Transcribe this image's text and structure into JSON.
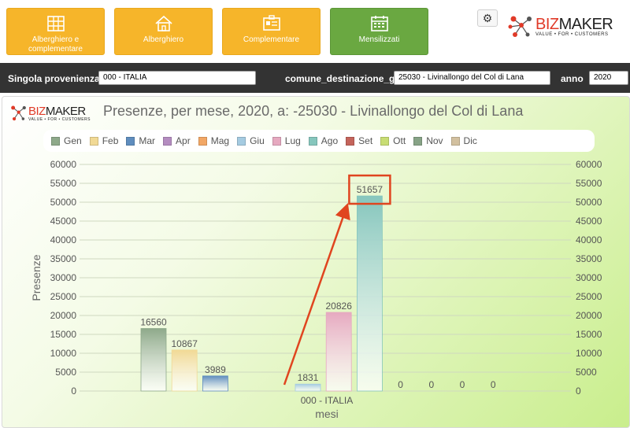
{
  "nav": {
    "buttons": [
      {
        "label": "Alberghiero e complementare",
        "icon": "building-icon",
        "style": "orange"
      },
      {
        "label": "Alberghiero",
        "icon": "house-icon",
        "style": "orange"
      },
      {
        "label": "Complementare",
        "icon": "id-card-icon",
        "style": "orange"
      },
      {
        "label": "Mensilizzati",
        "icon": "calendar-icon",
        "style": "green"
      }
    ]
  },
  "logo": {
    "word_a": "BIZ",
    "word_b": "MAKER",
    "tagline": "VALUE • FOR • CUSTOMERS"
  },
  "filters": {
    "provenienza_label": "Singola provenienza:",
    "provenienza_value": "000 - ITALIA",
    "comune_label": "comune_destinazione_g",
    "comune_value": "25030 - Livinallongo del Col di Lana",
    "anno_label": "anno",
    "anno_value": "2020"
  },
  "colors": {
    "accent_orange": "#f6b52a",
    "accent_green": "#6aa841",
    "annotation_red": "#e0451f"
  },
  "chart_data": {
    "type": "bar",
    "title": "Presenze, per mese, 2020, a: -25030 - Livinallongo del Col di Lana",
    "xlabel": "mesi",
    "ylabel": "Presenze",
    "categories": [
      "000 - ITALIA"
    ],
    "ylim": [
      0,
      60000
    ],
    "yticks": [
      0,
      5000,
      10000,
      15000,
      20000,
      25000,
      30000,
      35000,
      40000,
      45000,
      50000,
      55000,
      60000
    ],
    "grid": true,
    "legend_position": "top",
    "series": [
      {
        "name": "Gen",
        "values": [
          16560
        ],
        "color": "#8ea98a"
      },
      {
        "name": "Feb",
        "values": [
          10867
        ],
        "color": "#f1d995"
      },
      {
        "name": "Mar",
        "values": [
          3989
        ],
        "color": "#5f8dbe"
      },
      {
        "name": "Apr",
        "values": [
          0
        ],
        "color": "#b48cc0"
      },
      {
        "name": "Mag",
        "values": [
          0
        ],
        "color": "#f2a765"
      },
      {
        "name": "Giu",
        "values": [
          1831
        ],
        "color": "#a5cbe1"
      },
      {
        "name": "Lug",
        "values": [
          20826
        ],
        "color": "#e6a9c0"
      },
      {
        "name": "Ago",
        "values": [
          51657
        ],
        "color": "#86c6bd"
      },
      {
        "name": "Set",
        "values": [
          0
        ],
        "color": "#c4645b"
      },
      {
        "name": "Ott",
        "values": [
          0
        ],
        "color": "#c8dd74"
      },
      {
        "name": "Nov",
        "values": [
          0
        ],
        "color": "#87a386"
      },
      {
        "name": "Dic",
        "values": [
          0
        ],
        "color": "#d2c09f"
      }
    ],
    "bar_labels": [
      "16560",
      "10867",
      "3989",
      "",
      "",
      "1831",
      "20826",
      "51657",
      "0",
      "0",
      "0",
      "0"
    ],
    "highlight": {
      "series": "Ago",
      "value": 51657
    }
  }
}
